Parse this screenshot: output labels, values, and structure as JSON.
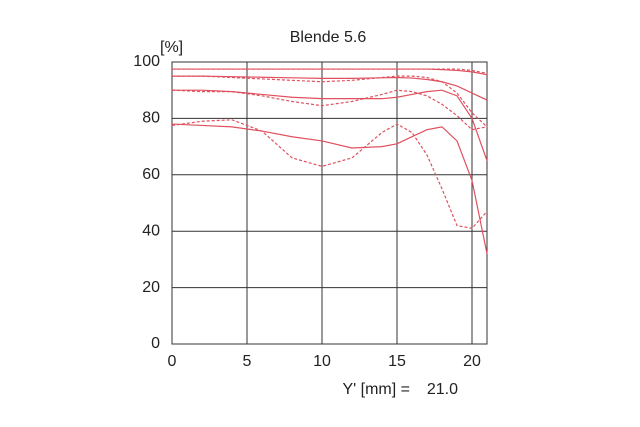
{
  "chart_data": {
    "type": "line",
    "title": "Blende 5.6",
    "y_unit": "[%]",
    "x_label": "Y' [mm] =",
    "x_value": "21.0",
    "x": [
      0,
      2,
      4,
      6,
      8,
      10,
      12,
      14,
      15,
      16,
      17,
      18,
      19,
      20,
      21
    ],
    "series": [
      {
        "color": "#e0505f",
        "dashed": false,
        "values": [
          97.5,
          97.5,
          97.5,
          97.5,
          97.5,
          97.5,
          97.5,
          97.5,
          97.5,
          97.5,
          97.5,
          97.3,
          97,
          96.5,
          95.5
        ]
      },
      {
        "color": "#e0505f",
        "dashed": true,
        "values": [
          97.5,
          97.5,
          97.5,
          97.5,
          97.5,
          97.5,
          97.5,
          97.5,
          97.5,
          97.5,
          97.5,
          97.5,
          97.5,
          97,
          96
        ]
      },
      {
        "color": "#e0505f",
        "dashed": false,
        "values": [
          95,
          95,
          94.8,
          94.6,
          94.4,
          94.2,
          94.2,
          94.4,
          94.5,
          94.3,
          93.8,
          93,
          91.5,
          89,
          86.5
        ]
      },
      {
        "color": "#e0505f",
        "dashed": true,
        "values": [
          95,
          95,
          94.5,
          94,
          93.5,
          93,
          93.5,
          94.5,
          95,
          95,
          94.5,
          93,
          89,
          82,
          77
        ]
      },
      {
        "color": "#e0505f",
        "dashed": false,
        "values": [
          90,
          90,
          89.5,
          88.5,
          87.5,
          87,
          87,
          87,
          87.5,
          88.5,
          89.5,
          90,
          88,
          80,
          65
        ]
      },
      {
        "color": "#e0505f",
        "dashed": true,
        "values": [
          90,
          89.5,
          89.5,
          88,
          86,
          84.5,
          86,
          88.5,
          90,
          89.5,
          88,
          85,
          81,
          76,
          77
        ]
      },
      {
        "color": "#e0505f",
        "dashed": false,
        "values": [
          78,
          77.5,
          77,
          75.5,
          73.5,
          72,
          69.5,
          70,
          71,
          73.5,
          76,
          77,
          72,
          58,
          32
        ]
      },
      {
        "color": "#e0505f",
        "dashed": true,
        "values": [
          77.5,
          79,
          79.5,
          75.5,
          66,
          63,
          66,
          75,
          78,
          75,
          67,
          55,
          42,
          41,
          47
        ]
      }
    ],
    "xlim": [
      0,
      21
    ],
    "ylim": [
      0,
      100
    ],
    "xticks": [
      0,
      5,
      10,
      15,
      20
    ],
    "yticks": [
      0,
      20,
      40,
      60,
      80,
      100
    ],
    "grid": true
  }
}
